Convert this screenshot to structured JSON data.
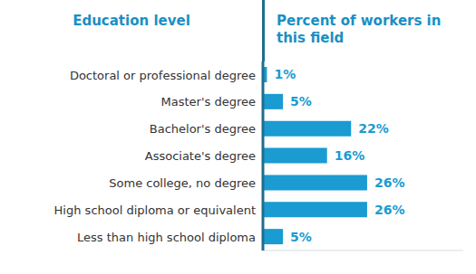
{
  "chart_data": {
    "type": "bar",
    "orientation": "horizontal",
    "y_label": "Education level",
    "x_label": "Percent of workers in this field",
    "categories": [
      "Doctoral or professional degree",
      "Master's degree",
      "Bachelor's degree",
      "Associate's degree",
      "Some college, no degree",
      "High school diploma or equivalent",
      "Less than high school diploma"
    ],
    "values": [
      1,
      5,
      22,
      16,
      26,
      26,
      5
    ],
    "value_labels": [
      "1%",
      "5%",
      "22%",
      "16%",
      "26%",
      "26%",
      "5%"
    ],
    "color": "#1a9bd1",
    "xlim": [
      0,
      50
    ],
    "grid": false,
    "data_labels": true,
    "tick_labels": "y"
  }
}
